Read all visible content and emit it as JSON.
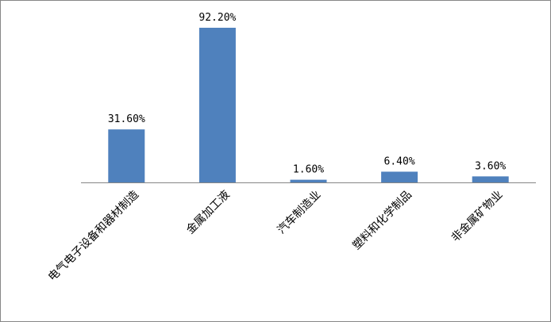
{
  "chart_data": {
    "type": "bar",
    "categories": [
      "电气电子设备和器材制造",
      "金属加工液",
      "汽车制造业",
      "塑料和化学制品",
      "非金属矿物业"
    ],
    "values": [
      31.6,
      92.2,
      1.6,
      6.4,
      3.6
    ],
    "data_labels": [
      "31.60%",
      "92.20%",
      "1.60%",
      "6.40%",
      "3.60%"
    ],
    "title": "",
    "xlabel": "",
    "ylabel": "",
    "unit": "%",
    "ylim": [
      0,
      100
    ],
    "grid": false,
    "legend": "none",
    "bar_color": "#4F81BD",
    "axis_color": "#868686"
  }
}
